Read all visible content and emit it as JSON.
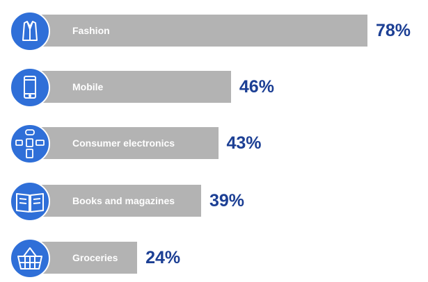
{
  "colors": {
    "bar": "#b3b3b3",
    "icon_bg": "#2f6fd8",
    "value_text": "#1c3f94",
    "label_text": "#ffffff"
  },
  "chart_data": {
    "type": "bar",
    "orientation": "horizontal",
    "categories": [
      "Fashion",
      "Mobile",
      "Consumer electronics",
      "Books and magazines",
      "Groceries"
    ],
    "values": [
      78,
      46,
      43,
      39,
      24
    ],
    "value_labels": [
      "78%",
      "46%",
      "43%",
      "39%",
      "24%"
    ],
    "icons": [
      "jacket-icon",
      "smartphone-icon",
      "electronics-icon",
      "book-icon",
      "basket-icon"
    ],
    "xlim": [
      0,
      100
    ],
    "grid": false,
    "legend": "none"
  }
}
